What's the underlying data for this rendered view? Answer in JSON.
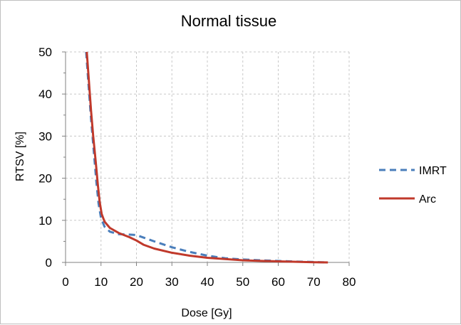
{
  "chart_data": {
    "type": "line",
    "title": "Normal tissue",
    "xlabel": "Dose [Gy]",
    "ylabel": "RTSV [%]",
    "xlim": [
      0,
      80
    ],
    "ylim": [
      0,
      50
    ],
    "xticks": [
      "0",
      "10",
      "20",
      "30",
      "40",
      "50",
      "60",
      "70",
      "80"
    ],
    "yticks": [
      "0",
      "10",
      "20",
      "30",
      "40",
      "50"
    ],
    "grid": true,
    "legend_position": "right",
    "series": [
      {
        "name": "IMRT",
        "color": "#4a7ebb",
        "style": "dashed",
        "points": [
          [
            5.8,
            50
          ],
          [
            6.5,
            42
          ],
          [
            7.2,
            34
          ],
          [
            8.0,
            26
          ],
          [
            8.7,
            19
          ],
          [
            9.3,
            14
          ],
          [
            10.0,
            10.5
          ],
          [
            11.0,
            8.5
          ],
          [
            12.5,
            7.3
          ],
          [
            15,
            6.7
          ],
          [
            18,
            6.6
          ],
          [
            20,
            6.5
          ],
          [
            25,
            5.0
          ],
          [
            30,
            3.6
          ],
          [
            35,
            2.5
          ],
          [
            40,
            1.6
          ],
          [
            45,
            1.0
          ],
          [
            50,
            0.7
          ],
          [
            55,
            0.5
          ],
          [
            60,
            0.35
          ],
          [
            65,
            0.2
          ],
          [
            70,
            0.1
          ],
          [
            74,
            0.0
          ]
        ]
      },
      {
        "name": "Arc",
        "color": "#c0392b",
        "style": "solid",
        "points": [
          [
            6.0,
            50
          ],
          [
            6.6,
            43
          ],
          [
            7.2,
            36
          ],
          [
            7.8,
            30
          ],
          [
            8.5,
            24
          ],
          [
            9.1,
            18.5
          ],
          [
            9.6,
            14.5
          ],
          [
            10.2,
            11.5
          ],
          [
            11.0,
            9.7
          ],
          [
            12.5,
            8.2
          ],
          [
            15,
            7.0
          ],
          [
            18,
            6.0
          ],
          [
            20,
            5.2
          ],
          [
            22,
            4.2
          ],
          [
            25,
            3.3
          ],
          [
            30,
            2.3
          ],
          [
            35,
            1.6
          ],
          [
            40,
            1.1
          ],
          [
            45,
            0.8
          ],
          [
            50,
            0.5
          ],
          [
            55,
            0.35
          ],
          [
            60,
            0.25
          ],
          [
            65,
            0.15
          ],
          [
            70,
            0.05
          ],
          [
            74,
            0.0
          ]
        ]
      }
    ]
  }
}
